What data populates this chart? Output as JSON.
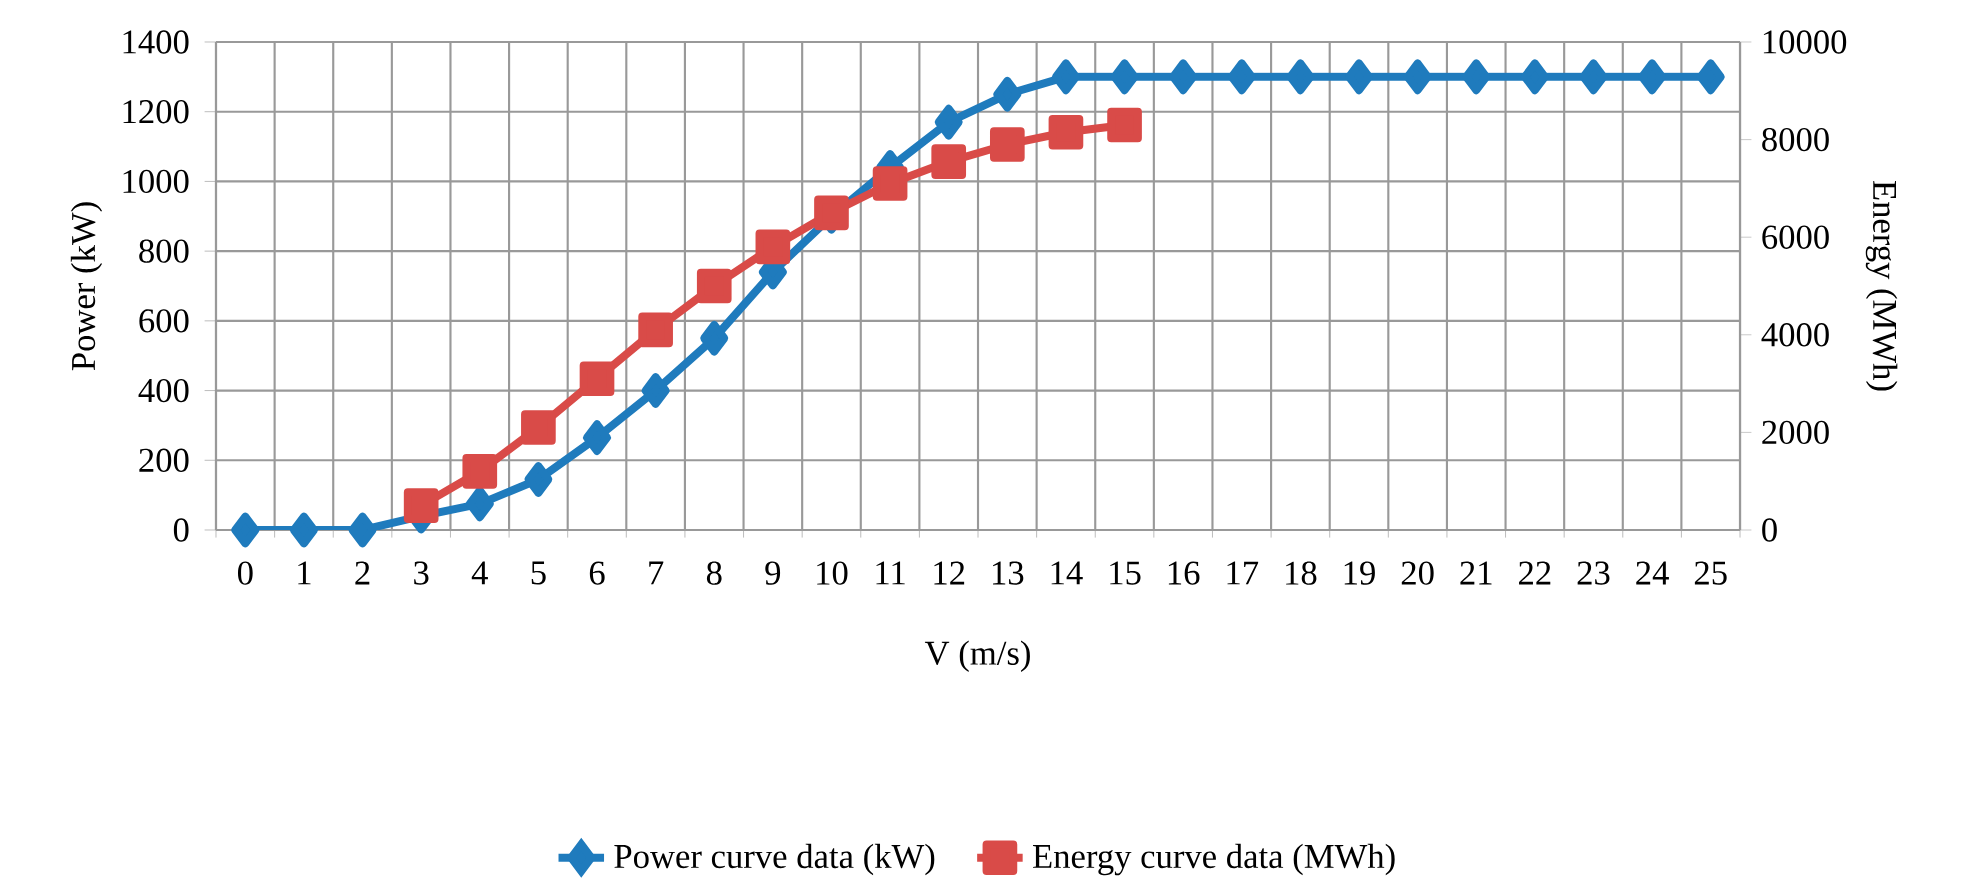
{
  "chart_data": {
    "type": "line",
    "xlabel": "V (m/s)",
    "ylabel": "Power (kW)",
    "y2label": "Energy (MWh)",
    "categories": [
      "0",
      "1",
      "2",
      "3",
      "4",
      "5",
      "6",
      "7",
      "8",
      "9",
      "10",
      "11",
      "12",
      "13",
      "14",
      "15",
      "16",
      "17",
      "18",
      "19",
      "20",
      "21",
      "22",
      "23",
      "24",
      "25"
    ],
    "series": [
      {
        "name": "Power curve data (kW)",
        "color": "#1f7bbd",
        "marker": "diamond",
        "values": [
          0,
          0,
          0,
          40,
          75,
          145,
          265,
          400,
          550,
          740,
          900,
          1040,
          1170,
          1250,
          1300,
          1300,
          1300,
          1300,
          1300,
          1300,
          1300,
          1300,
          1300,
          1300,
          1300,
          1300
        ]
      },
      {
        "name": "Energy curve data (MWh)",
        "color": "#d94b48",
        "marker": "square",
        "axis": "y2",
        "values": [
          null,
          null,
          null,
          500,
          1200,
          2100,
          3100,
          4100,
          5000,
          5800,
          6500,
          7100,
          7550,
          7900,
          8150,
          8300,
          null,
          null,
          null,
          null,
          null,
          null,
          null,
          null,
          null,
          null
        ]
      }
    ],
    "ylim": [
      0,
      1400
    ],
    "yticks": [
      0,
      200,
      400,
      600,
      800,
      1000,
      1200,
      1400
    ],
    "y2lim": [
      0,
      10000
    ],
    "y2ticks": [
      0,
      2000,
      4000,
      6000,
      8000,
      10000
    ],
    "grid": true,
    "legend": "bottom",
    "line_style": "solid"
  }
}
